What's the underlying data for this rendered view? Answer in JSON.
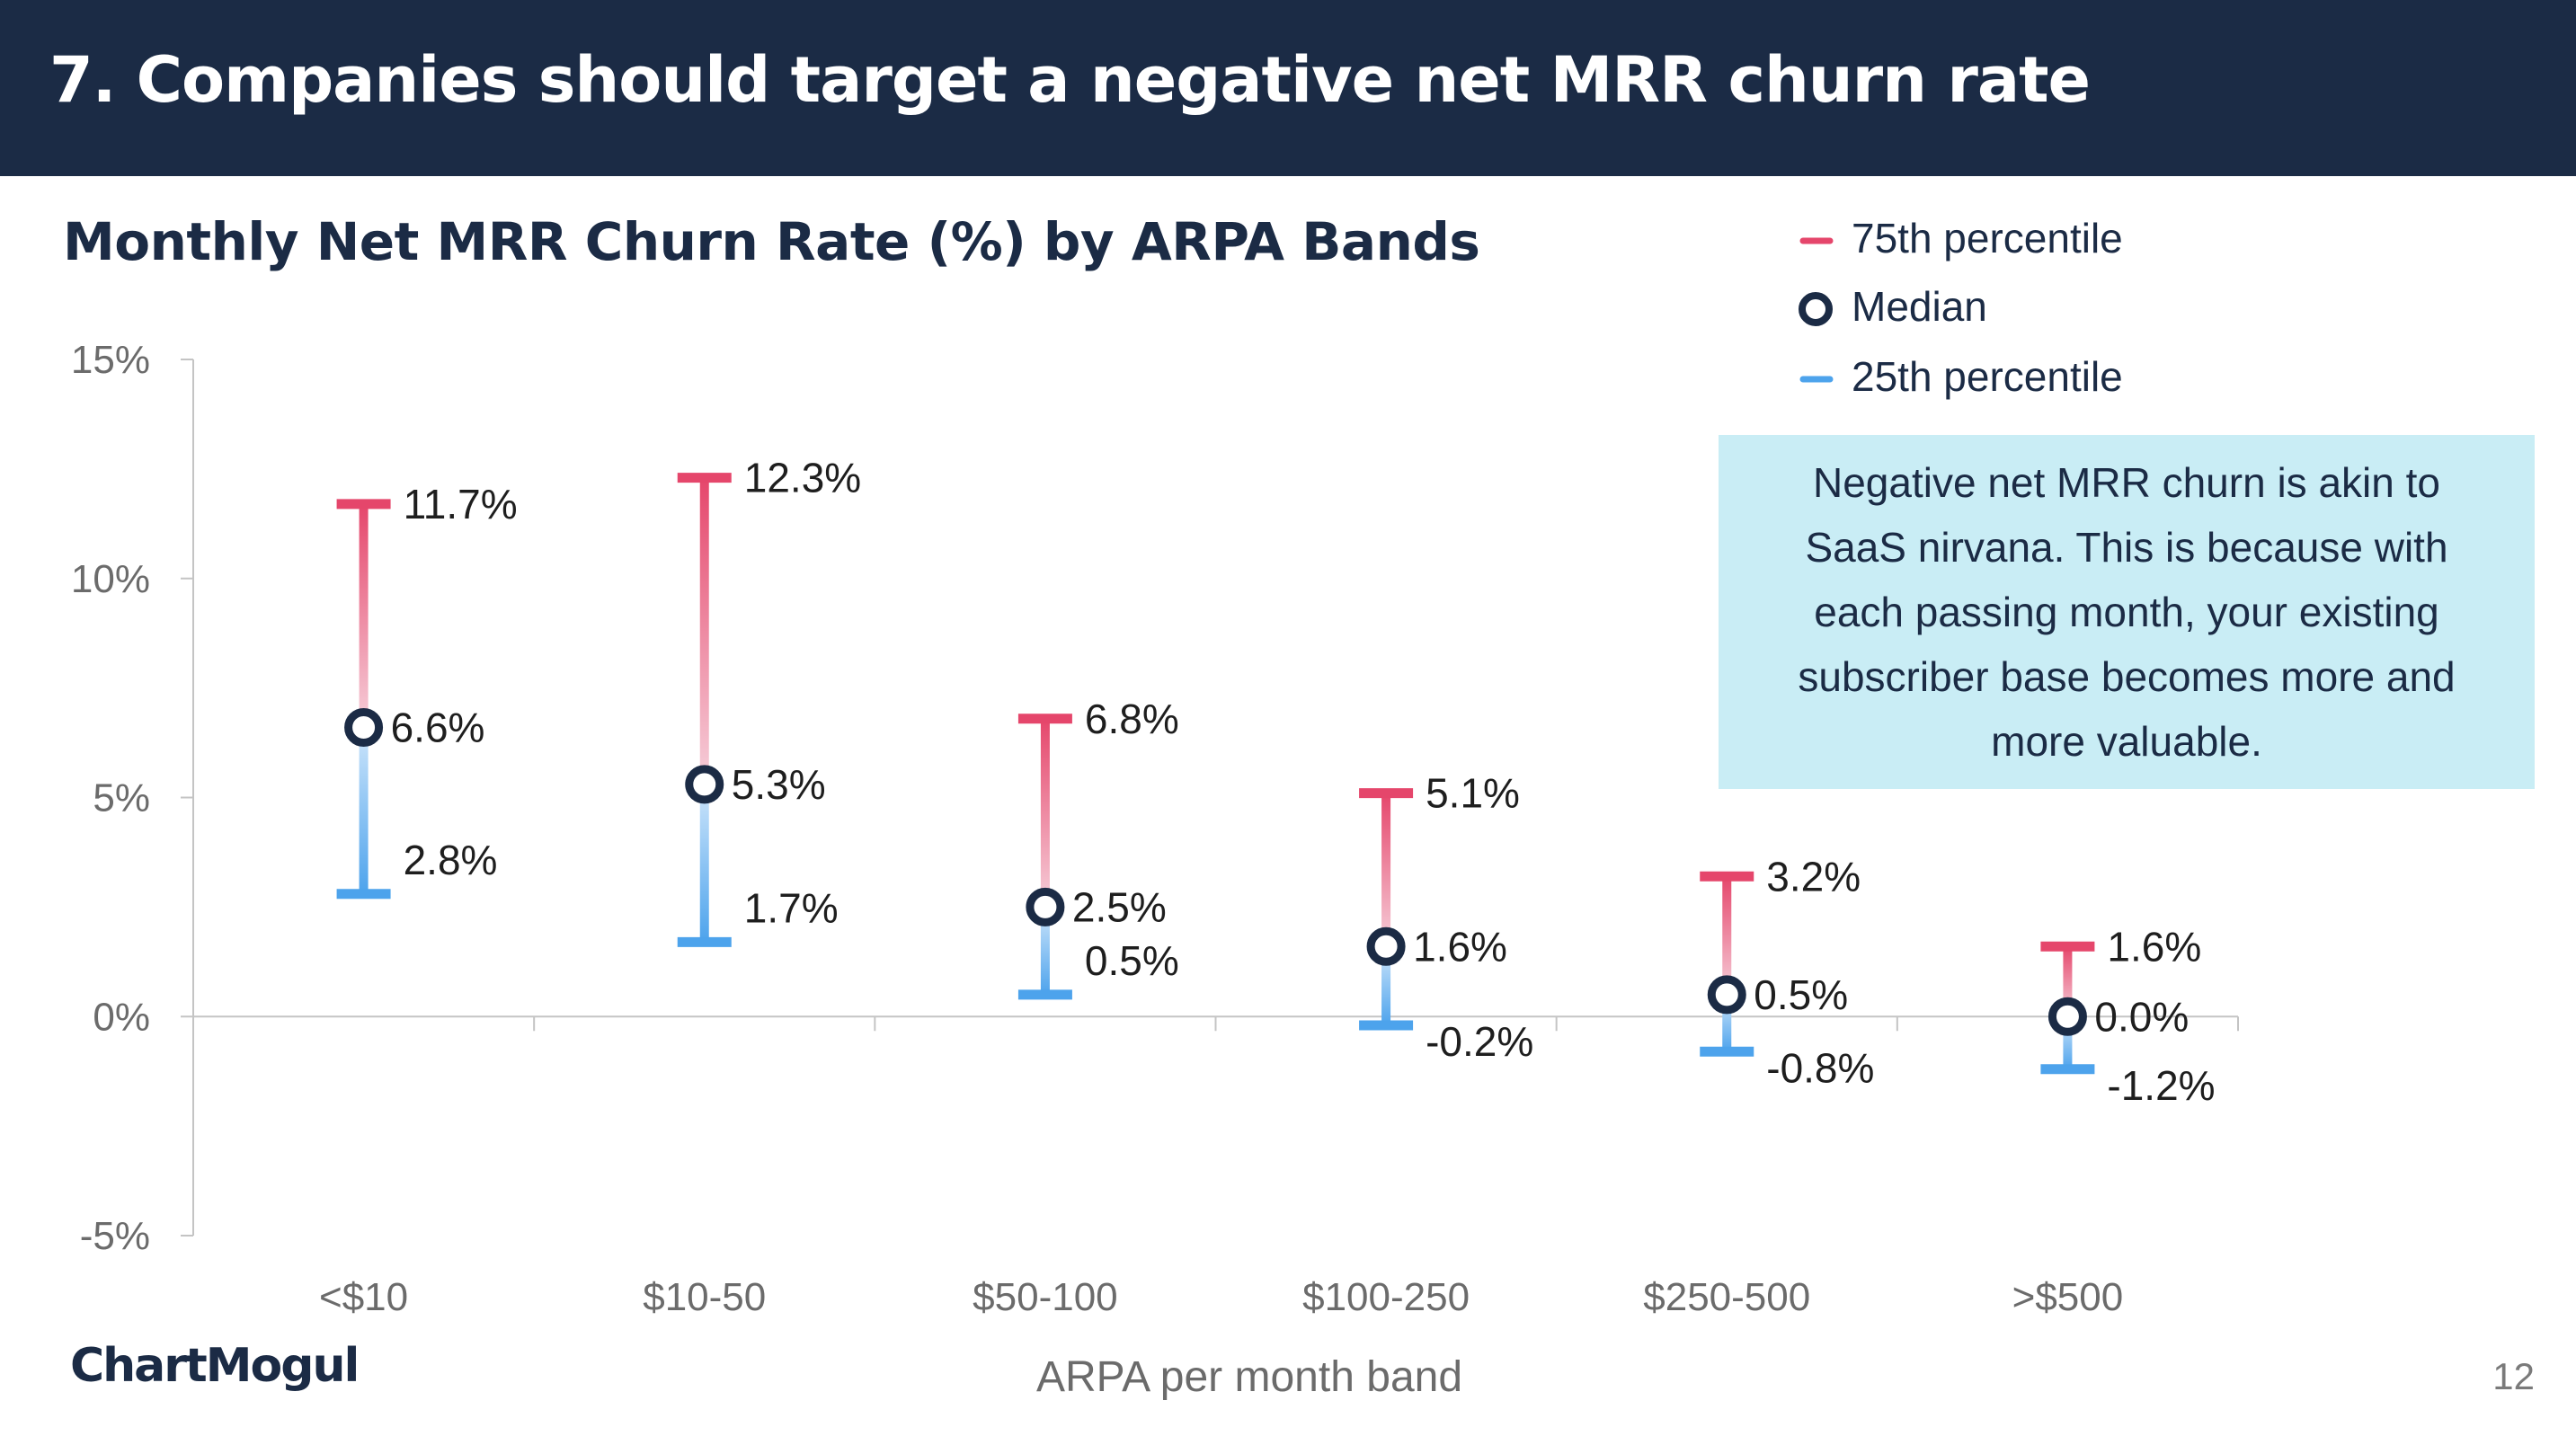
{
  "header": {
    "title": "7. Companies should target a negative net MRR churn rate"
  },
  "legend": {
    "items": [
      {
        "label": "75th percentile",
        "marker": "dash",
        "color": "#e5466b"
      },
      {
        "label": "Median",
        "marker": "ring",
        "color": "#1b2b45"
      },
      {
        "label": "25th percentile",
        "marker": "dash",
        "color": "#4da3ec"
      }
    ]
  },
  "callout": {
    "text": "Negative net MRR churn is akin to SaaS nirvana. This is because with each passing month, your existing subscriber base becomes more and more valuable."
  },
  "chart_data": {
    "type": "range",
    "title": "Monthly Net MRR Churn Rate (%) by ARPA Bands",
    "xlabel": "ARPA per month band",
    "ylabel": "",
    "ylim": [
      -5,
      15
    ],
    "yticks": [
      15,
      10,
      5,
      0,
      -5
    ],
    "ytick_labels": [
      "15%",
      "10%",
      "5%",
      "0%",
      "-5%"
    ],
    "categories": [
      "<$10",
      "$10-50",
      "$50-100",
      "$100-250",
      "$250-500",
      ">$500"
    ],
    "series": [
      {
        "name": "75th percentile",
        "values": [
          11.7,
          12.3,
          6.8,
          5.1,
          3.2,
          1.6
        ],
        "labels": [
          "11.7%",
          "12.3%",
          "6.8%",
          "5.1%",
          "3.2%",
          "1.6%"
        ]
      },
      {
        "name": "Median",
        "values": [
          6.6,
          5.3,
          2.5,
          1.6,
          0.5,
          0.0
        ],
        "labels": [
          "6.6%",
          "5.3%",
          "2.5%",
          "1.6%",
          "0.5%",
          "0.0%"
        ]
      },
      {
        "name": "25th percentile",
        "values": [
          2.8,
          1.7,
          0.5,
          -0.2,
          -0.8,
          -1.2
        ],
        "labels": [
          "2.8%",
          "1.7%",
          "0.5%",
          "-0.2%",
          "-0.8%",
          "-1.2%"
        ]
      }
    ],
    "colors": {
      "p75": "#e5466b",
      "median": "#1b2b45",
      "p25": "#4da3ec"
    },
    "grid": false,
    "legend_position": "top-right"
  },
  "footer": {
    "logo": "ChartMogul",
    "page_number": "12"
  }
}
